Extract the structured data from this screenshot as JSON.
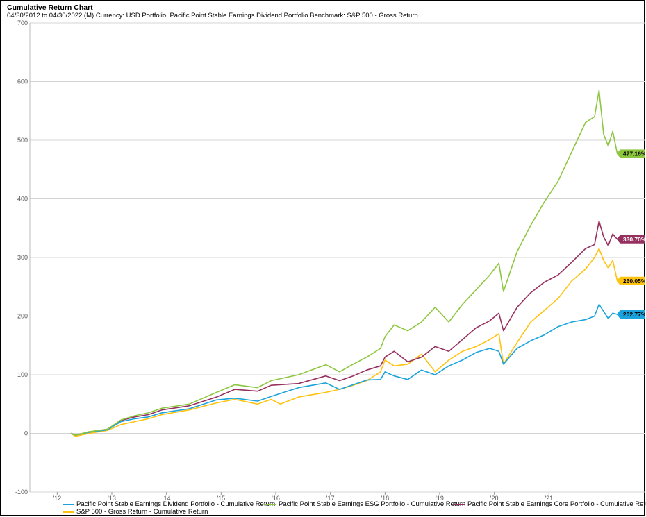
{
  "header": {
    "title": "Cumulative Return Chart",
    "subtitle": "04/30/2012 to 04/30/2022 (M) Currency: USD Portfolio: Pacific Point Stable Earnings Dividend Portfolio Benchmark: S&P 500 - Gross Return"
  },
  "chart_data": {
    "type": "line",
    "title": "Cumulative Return Chart",
    "subtitle": "04/30/2012 to 04/30/2022 (M) Currency: USD Portfolio: Pacific Point Stable Earnings Dividend Portfolio Benchmark: S&P 500 - Gross Return",
    "ylim": [
      -100,
      700
    ],
    "y_ticks": [
      -100,
      0,
      100,
      200,
      300,
      400,
      500,
      600,
      700
    ],
    "x_ticks": [
      "'12",
      "'13",
      "'14",
      "'15",
      "'16",
      "'17",
      "'18",
      "'19",
      "'20",
      "'21"
    ],
    "x_tick_dates": [
      "2012-01",
      "2013-01",
      "2014-01",
      "2015-01",
      "2016-01",
      "2017-01",
      "2018-01",
      "2019-01",
      "2020-01",
      "2021-01"
    ],
    "x_start": "2012-04",
    "x_end": "2022-04",
    "grid": true,
    "legend_position": "bottom",
    "series": [
      {
        "name": "Pacific Point Stable Earnings Dividend Portfolio - Cumulative Return",
        "color": "#1aa3dc",
        "end_label": "202.77%",
        "knots": [
          [
            "2012-04",
            0
          ],
          [
            "2012-05",
            -3
          ],
          [
            "2012-08",
            2
          ],
          [
            "2012-12",
            6
          ],
          [
            "2013-03",
            20
          ],
          [
            "2013-06",
            25
          ],
          [
            "2013-09",
            28
          ],
          [
            "2013-12",
            35
          ],
          [
            "2014-06",
            42
          ],
          [
            "2014-12",
            57
          ],
          [
            "2015-04",
            60
          ],
          [
            "2015-09",
            55
          ],
          [
            "2015-12",
            63
          ],
          [
            "2016-06",
            78
          ],
          [
            "2016-12",
            86
          ],
          [
            "2017-03",
            75
          ],
          [
            "2017-06",
            83
          ],
          [
            "2017-09",
            91
          ],
          [
            "2017-12",
            92
          ],
          [
            "2018-01",
            105
          ],
          [
            "2018-03",
            98
          ],
          [
            "2018-06",
            92
          ],
          [
            "2018-09",
            108
          ],
          [
            "2018-12",
            100
          ],
          [
            "2019-03",
            115
          ],
          [
            "2019-06",
            125
          ],
          [
            "2019-09",
            138
          ],
          [
            "2019-12",
            145
          ],
          [
            "2020-02",
            140
          ],
          [
            "2020-03",
            118
          ],
          [
            "2020-06",
            145
          ],
          [
            "2020-09",
            158
          ],
          [
            "2020-12",
            168
          ],
          [
            "2021-03",
            182
          ],
          [
            "2021-06",
            190
          ],
          [
            "2021-09",
            194
          ],
          [
            "2021-11",
            200
          ],
          [
            "2021-12",
            220
          ],
          [
            "2022-01",
            208
          ],
          [
            "2022-02",
            196
          ],
          [
            "2022-03",
            205
          ],
          [
            "2022-04",
            203
          ]
        ]
      },
      {
        "name": "Pacific Point Stable Earnings ESG Portfolio - Cumulative Return",
        "color": "#8dc63f",
        "end_label": "477.16%",
        "knots": [
          [
            "2012-04",
            0
          ],
          [
            "2012-05",
            -3
          ],
          [
            "2012-08",
            3
          ],
          [
            "2012-12",
            7
          ],
          [
            "2013-03",
            23
          ],
          [
            "2013-06",
            30
          ],
          [
            "2013-09",
            35
          ],
          [
            "2013-12",
            43
          ],
          [
            "2014-06",
            50
          ],
          [
            "2014-12",
            70
          ],
          [
            "2015-04",
            83
          ],
          [
            "2015-09",
            78
          ],
          [
            "2015-12",
            90
          ],
          [
            "2016-06",
            100
          ],
          [
            "2016-12",
            117
          ],
          [
            "2017-03",
            105
          ],
          [
            "2017-06",
            118
          ],
          [
            "2017-09",
            130
          ],
          [
            "2017-12",
            145
          ],
          [
            "2018-01",
            165
          ],
          [
            "2018-03",
            185
          ],
          [
            "2018-06",
            175
          ],
          [
            "2018-09",
            190
          ],
          [
            "2018-12",
            215
          ],
          [
            "2019-03",
            190
          ],
          [
            "2019-06",
            220
          ],
          [
            "2019-09",
            245
          ],
          [
            "2019-12",
            270
          ],
          [
            "2020-02",
            290
          ],
          [
            "2020-03",
            242
          ],
          [
            "2020-06",
            310
          ],
          [
            "2020-09",
            355
          ],
          [
            "2020-12",
            395
          ],
          [
            "2021-03",
            430
          ],
          [
            "2021-06",
            480
          ],
          [
            "2021-09",
            530
          ],
          [
            "2021-11",
            540
          ],
          [
            "2021-12",
            585
          ],
          [
            "2022-01",
            510
          ],
          [
            "2022-02",
            490
          ],
          [
            "2022-03",
            515
          ],
          [
            "2022-04",
            477
          ]
        ]
      },
      {
        "name": "Pacific Point Stable Earnings Core Portfolio - Cumulative Return",
        "color": "#96305f",
        "end_label": "330.70%",
        "knots": [
          [
            "2012-04",
            0
          ],
          [
            "2012-05",
            -3
          ],
          [
            "2012-08",
            2
          ],
          [
            "2012-12",
            7
          ],
          [
            "2013-03",
            22
          ],
          [
            "2013-06",
            28
          ],
          [
            "2013-09",
            32
          ],
          [
            "2013-12",
            40
          ],
          [
            "2014-06",
            47
          ],
          [
            "2014-12",
            62
          ],
          [
            "2015-04",
            75
          ],
          [
            "2015-09",
            72
          ],
          [
            "2015-12",
            82
          ],
          [
            "2016-06",
            85
          ],
          [
            "2016-12",
            98
          ],
          [
            "2017-03",
            90
          ],
          [
            "2017-06",
            98
          ],
          [
            "2017-09",
            108
          ],
          [
            "2017-12",
            115
          ],
          [
            "2018-01",
            130
          ],
          [
            "2018-03",
            140
          ],
          [
            "2018-06",
            122
          ],
          [
            "2018-09",
            130
          ],
          [
            "2018-12",
            148
          ],
          [
            "2019-03",
            140
          ],
          [
            "2019-06",
            160
          ],
          [
            "2019-09",
            180
          ],
          [
            "2019-12",
            192
          ],
          [
            "2020-02",
            205
          ],
          [
            "2020-03",
            175
          ],
          [
            "2020-06",
            215
          ],
          [
            "2020-09",
            240
          ],
          [
            "2020-12",
            258
          ],
          [
            "2021-03",
            270
          ],
          [
            "2021-06",
            292
          ],
          [
            "2021-09",
            315
          ],
          [
            "2021-11",
            322
          ],
          [
            "2021-12",
            362
          ],
          [
            "2022-01",
            335
          ],
          [
            "2022-02",
            320
          ],
          [
            "2022-03",
            340
          ],
          [
            "2022-04",
            331
          ]
        ]
      },
      {
        "name": "S&P 500 - Gross Return - Cumulative Return",
        "color": "#ffc20e",
        "end_label": "260.05%",
        "knots": [
          [
            "2012-04",
            0
          ],
          [
            "2012-05",
            -5
          ],
          [
            "2012-08",
            0
          ],
          [
            "2012-12",
            5
          ],
          [
            "2013-03",
            15
          ],
          [
            "2013-06",
            20
          ],
          [
            "2013-09",
            25
          ],
          [
            "2013-12",
            32
          ],
          [
            "2014-06",
            40
          ],
          [
            "2014-12",
            52
          ],
          [
            "2015-04",
            58
          ],
          [
            "2015-09",
            50
          ],
          [
            "2015-12",
            58
          ],
          [
            "2016-02",
            50
          ],
          [
            "2016-06",
            62
          ],
          [
            "2016-12",
            70
          ],
          [
            "2017-03",
            75
          ],
          [
            "2017-06",
            82
          ],
          [
            "2017-09",
            90
          ],
          [
            "2017-12",
            105
          ],
          [
            "2018-01",
            125
          ],
          [
            "2018-03",
            115
          ],
          [
            "2018-06",
            118
          ],
          [
            "2018-09",
            135
          ],
          [
            "2018-12",
            105
          ],
          [
            "2019-03",
            125
          ],
          [
            "2019-06",
            140
          ],
          [
            "2019-09",
            148
          ],
          [
            "2019-12",
            160
          ],
          [
            "2020-02",
            170
          ],
          [
            "2020-03",
            118
          ],
          [
            "2020-06",
            155
          ],
          [
            "2020-09",
            190
          ],
          [
            "2020-12",
            210
          ],
          [
            "2021-03",
            230
          ],
          [
            "2021-06",
            260
          ],
          [
            "2021-09",
            280
          ],
          [
            "2021-11",
            300
          ],
          [
            "2021-12",
            315
          ],
          [
            "2022-01",
            295
          ],
          [
            "2022-02",
            282
          ],
          [
            "2022-03",
            295
          ],
          [
            "2022-04",
            260
          ]
        ]
      }
    ]
  }
}
